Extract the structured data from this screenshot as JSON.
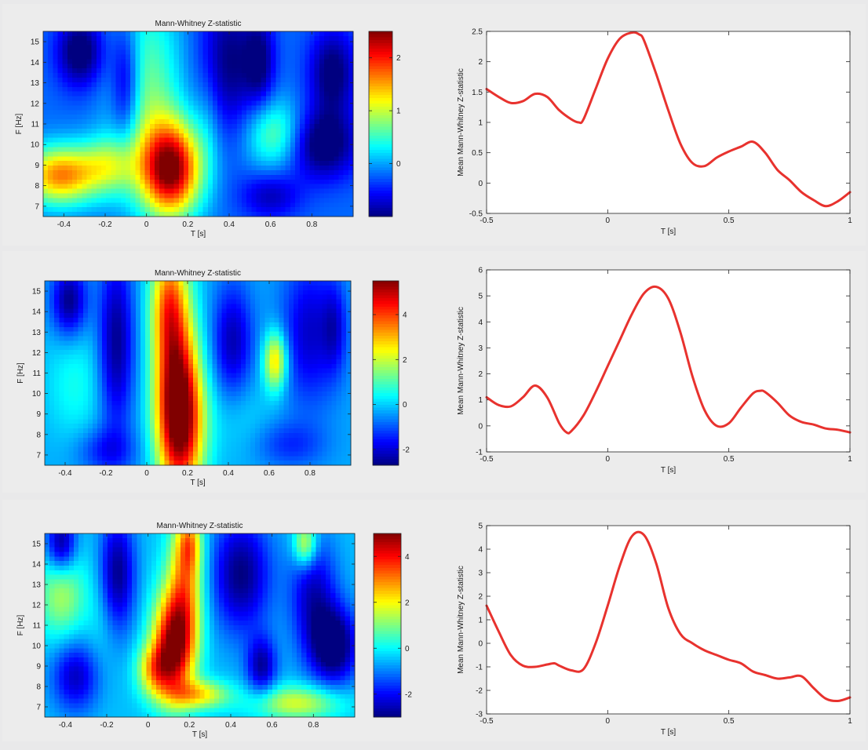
{
  "colors": {
    "curve": "#e8322e",
    "background": "#e9e9ea"
  },
  "chart_data": [
    {
      "type": "heatmap",
      "panel": 1,
      "title": "Mann-Whitney Z-statistic",
      "xlabel": "T [s]",
      "ylabel": "F [Hz]",
      "xlim": [
        -0.5,
        1.0
      ],
      "ylim": [
        6.5,
        15.5
      ],
      "xticks": [
        -0.4,
        -0.2,
        0,
        0.2,
        0.4,
        0.6,
        0.8
      ],
      "xtick_labels": [
        "-0.4",
        "-0.2",
        "0",
        "0.2",
        "0.4",
        "0.6",
        "0.8"
      ],
      "yticks": [
        7,
        8,
        9,
        10,
        11,
        12,
        13,
        14,
        15
      ],
      "ytick_labels": [
        "7",
        "8",
        "9",
        "10",
        "11",
        "12",
        "13",
        "14",
        "15"
      ],
      "colorbar": {
        "range": [
          -1.0,
          2.5
        ],
        "ticks": [
          0,
          1,
          2
        ],
        "tick_labels": [
          "0",
          "1",
          "2"
        ],
        "colormap": "jet"
      },
      "baseline": -0.2,
      "blobs": [
        [
          0.12,
          8.8,
          0.1,
          1.6,
          2.6
        ],
        [
          -0.42,
          8.5,
          0.13,
          1.0,
          1.8
        ],
        [
          -0.18,
          9.0,
          0.1,
          1.0,
          0.9
        ],
        [
          0.0,
          12.5,
          0.12,
          3.5,
          0.9
        ],
        [
          0.3,
          11.0,
          0.05,
          2.0,
          0.3
        ],
        [
          0.62,
          10.5,
          0.1,
          1.2,
          0.9
        ],
        [
          -0.32,
          14.5,
          0.08,
          1.2,
          -1.0
        ],
        [
          -0.1,
          13.0,
          0.05,
          2.0,
          -0.9
        ],
        [
          0.4,
          14.0,
          0.1,
          2.5,
          -0.8
        ],
        [
          0.55,
          14.0,
          0.05,
          1.5,
          -0.7
        ],
        [
          0.85,
          10.0,
          0.12,
          1.2,
          -1.0
        ],
        [
          0.9,
          13.5,
          0.08,
          1.5,
          -0.9
        ],
        [
          0.6,
          7.5,
          0.1,
          0.8,
          -0.6
        ]
      ]
    },
    {
      "type": "line",
      "panel": 1,
      "xlabel": "T [s]",
      "ylabel": "Mean Mann-Whitney Z-statistic",
      "xlim": [
        -0.5,
        1.0
      ],
      "ylim": [
        -0.5,
        2.5
      ],
      "xticks": [
        -0.5,
        0,
        0.5,
        1
      ],
      "xtick_labels": [
        "-0.5",
        "0",
        "0.5",
        "1"
      ],
      "yticks": [
        -0.5,
        0,
        0.5,
        1,
        1.5,
        2,
        2.5
      ],
      "ytick_labels": [
        "-0.5",
        "0",
        "0.5",
        "1",
        "1.5",
        "2",
        "2.5"
      ],
      "x": [
        -0.5,
        -0.45,
        -0.4,
        -0.35,
        -0.3,
        -0.25,
        -0.2,
        -0.15,
        -0.12,
        -0.1,
        -0.05,
        0,
        0.05,
        0.1,
        0.13,
        0.15,
        0.2,
        0.25,
        0.3,
        0.35,
        0.4,
        0.45,
        0.5,
        0.55,
        0.6,
        0.65,
        0.7,
        0.75,
        0.8,
        0.85,
        0.9,
        0.95,
        1.0
      ],
      "y": [
        1.55,
        1.42,
        1.32,
        1.35,
        1.47,
        1.42,
        1.2,
        1.05,
        1.0,
        1.05,
        1.55,
        2.05,
        2.38,
        2.48,
        2.45,
        2.35,
        1.8,
        1.2,
        0.65,
        0.33,
        0.28,
        0.42,
        0.52,
        0.6,
        0.68,
        0.5,
        0.22,
        0.05,
        -0.15,
        -0.28,
        -0.38,
        -0.3,
        -0.15
      ]
    },
    {
      "type": "heatmap",
      "panel": 2,
      "title": "Mann-Whitney Z-statistic",
      "xlabel": "T [s]",
      "ylabel": "F [Hz]",
      "xlim": [
        -0.5,
        1.0
      ],
      "ylim": [
        6.5,
        15.5
      ],
      "xticks": [
        -0.4,
        -0.2,
        0,
        0.2,
        0.4,
        0.6,
        0.8
      ],
      "xtick_labels": [
        "-0.4",
        "-0.2",
        "0",
        "0.2",
        "0.4",
        "0.6",
        "0.8"
      ],
      "yticks": [
        7,
        8,
        9,
        10,
        11,
        12,
        13,
        14,
        15
      ],
      "ytick_labels": [
        "7",
        "8",
        "9",
        "10",
        "11",
        "12",
        "13",
        "14",
        "15"
      ],
      "colorbar": {
        "range": [
          -2.7,
          5.5
        ],
        "ticks": [
          -2,
          0,
          2,
          4
        ],
        "tick_labels": [
          "-2",
          "0",
          "2",
          "4"
        ],
        "colormap": "jet"
      },
      "baseline": -0.3,
      "blobs": [
        [
          0.17,
          8.6,
          0.08,
          2.6,
          5.2
        ],
        [
          0.13,
          12.0,
          0.07,
          3.5,
          3.2
        ],
        [
          0.1,
          14.5,
          0.06,
          1.8,
          2.0
        ],
        [
          0.63,
          11.6,
          0.04,
          1.0,
          3.2
        ],
        [
          -0.35,
          10.5,
          0.1,
          2.0,
          0.8
        ],
        [
          0.45,
          9.0,
          0.1,
          1.5,
          0.5
        ],
        [
          -0.38,
          14.5,
          0.06,
          1.2,
          -2.4
        ],
        [
          -0.15,
          12.5,
          0.06,
          3.0,
          -2.3
        ],
        [
          0.42,
          12.5,
          0.07,
          2.0,
          -2.0
        ],
        [
          0.8,
          13.0,
          0.1,
          2.5,
          -1.8
        ],
        [
          0.92,
          13.2,
          0.04,
          1.5,
          -1.2
        ],
        [
          -0.2,
          7.2,
          0.1,
          0.8,
          -1.2
        ],
        [
          0.7,
          7.5,
          0.12,
          0.8,
          -1.0
        ]
      ]
    },
    {
      "type": "line",
      "panel": 2,
      "xlabel": "T [s]",
      "ylabel": "Mean Mann-Whitney Z-statistic",
      "xlim": [
        -0.5,
        1.0
      ],
      "ylim": [
        -1,
        6
      ],
      "xticks": [
        -0.5,
        0,
        0.5,
        1
      ],
      "xtick_labels": [
        "-0.5",
        "0",
        "0.5",
        "1"
      ],
      "yticks": [
        -1,
        0,
        1,
        2,
        3,
        4,
        5,
        6
      ],
      "ytick_labels": [
        "-1",
        "0",
        "1",
        "2",
        "3",
        "4",
        "5",
        "6"
      ],
      "x": [
        -0.5,
        -0.45,
        -0.4,
        -0.35,
        -0.3,
        -0.25,
        -0.2,
        -0.17,
        -0.15,
        -0.1,
        -0.05,
        0,
        0.05,
        0.1,
        0.15,
        0.2,
        0.25,
        0.3,
        0.35,
        0.4,
        0.45,
        0.5,
        0.55,
        0.6,
        0.63,
        0.65,
        0.7,
        0.75,
        0.8,
        0.85,
        0.9,
        0.95,
        1.0
      ],
      "y": [
        1.1,
        0.8,
        0.75,
        1.1,
        1.55,
        1.1,
        0.1,
        -0.25,
        -0.2,
        0.4,
        1.3,
        2.3,
        3.3,
        4.3,
        5.1,
        5.35,
        4.9,
        3.6,
        1.9,
        0.6,
        0.0,
        0.1,
        0.7,
        1.25,
        1.35,
        1.3,
        0.9,
        0.4,
        0.15,
        0.05,
        -0.1,
        -0.15,
        -0.25
      ]
    },
    {
      "type": "heatmap",
      "panel": 3,
      "title": "Mann-Whitney Z-statistic",
      "xlabel": "T [s]",
      "ylabel": "F [Hz]",
      "xlim": [
        -0.5,
        1.0
      ],
      "ylim": [
        6.5,
        15.5
      ],
      "xticks": [
        -0.4,
        -0.2,
        0,
        0.2,
        0.4,
        0.6,
        0.8
      ],
      "xtick_labels": [
        "-0.4",
        "-0.2",
        "0",
        "0.2",
        "0.4",
        "0.6",
        "0.8"
      ],
      "yticks": [
        7,
        8,
        9,
        10,
        11,
        12,
        13,
        14,
        15
      ],
      "ytick_labels": [
        "7",
        "8",
        "9",
        "10",
        "11",
        "12",
        "13",
        "14",
        "15"
      ],
      "colorbar": {
        "range": [
          -3,
          5
        ],
        "ticks": [
          -2,
          0,
          2,
          4
        ],
        "tick_labels": [
          "-2",
          "0",
          "2",
          "4"
        ],
        "colormap": "jet"
      },
      "baseline": -0.5,
      "blobs": [
        [
          0.12,
          10.0,
          0.07,
          1.8,
          5.0
        ],
        [
          0.18,
          13.0,
          0.06,
          2.5,
          3.0
        ],
        [
          0.2,
          15.0,
          0.04,
          1.0,
          2.0
        ],
        [
          0.03,
          8.8,
          0.06,
          0.9,
          2.5
        ],
        [
          0.25,
          7.6,
          0.1,
          0.5,
          2.5
        ],
        [
          0.72,
          7.2,
          0.15,
          0.6,
          2.2
        ],
        [
          0.76,
          15.0,
          0.04,
          0.8,
          2.5
        ],
        [
          -0.42,
          12.5,
          0.08,
          1.5,
          1.8
        ],
        [
          -0.22,
          11.5,
          0.06,
          2.0,
          0.5
        ],
        [
          -0.42,
          15.0,
          0.05,
          1.0,
          -2.5
        ],
        [
          -0.15,
          13.5,
          0.06,
          2.0,
          -2.5
        ],
        [
          0.45,
          13.5,
          0.1,
          2.0,
          -2.5
        ],
        [
          0.9,
          10.0,
          0.08,
          1.3,
          -3.0
        ],
        [
          0.8,
          12.5,
          0.08,
          2.0,
          -2.0
        ],
        [
          -0.35,
          8.5,
          0.08,
          1.2,
          -2.0
        ],
        [
          0.55,
          9.0,
          0.05,
          1.0,
          -2.2
        ]
      ]
    },
    {
      "type": "line",
      "panel": 3,
      "xlabel": "T [s]",
      "ylabel": "Mean Mann-Whitney Z-statistic",
      "xlim": [
        -0.5,
        1.0
      ],
      "ylim": [
        -3,
        5
      ],
      "xticks": [
        -0.5,
        0,
        0.5,
        1
      ],
      "xtick_labels": [
        "-0.5",
        "0",
        "0.5",
        "1"
      ],
      "yticks": [
        -3,
        -2,
        -1,
        0,
        1,
        2,
        3,
        4,
        5
      ],
      "ytick_labels": [
        "-3",
        "-2",
        "-1",
        "0",
        "1",
        "2",
        "3",
        "4",
        "5"
      ],
      "x": [
        -0.5,
        -0.45,
        -0.4,
        -0.35,
        -0.3,
        -0.25,
        -0.22,
        -0.2,
        -0.15,
        -0.1,
        -0.05,
        0,
        0.05,
        0.1,
        0.15,
        0.2,
        0.25,
        0.3,
        0.35,
        0.4,
        0.45,
        0.5,
        0.55,
        0.6,
        0.65,
        0.7,
        0.75,
        0.8,
        0.85,
        0.9,
        0.95,
        1.0
      ],
      "y": [
        1.6,
        0.5,
        -0.5,
        -0.95,
        -1.0,
        -0.9,
        -0.85,
        -0.95,
        -1.15,
        -1.1,
        0.0,
        1.6,
        3.3,
        4.55,
        4.6,
        3.4,
        1.5,
        0.4,
        0.0,
        -0.3,
        -0.5,
        -0.7,
        -0.85,
        -1.2,
        -1.35,
        -1.5,
        -1.45,
        -1.4,
        -1.9,
        -2.35,
        -2.45,
        -2.3
      ]
    }
  ]
}
